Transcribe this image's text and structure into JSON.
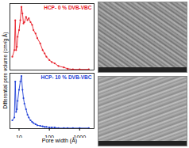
{
  "chart_data": [
    {
      "type": "line",
      "y_label": "Differential pore volume (cm³/g Å)",
      "log": "x",
      "tick_labels": false,
      "marker": "circle",
      "xlim": [
        5,
        3000
      ],
      "xticks": [
        10,
        100,
        1000
      ],
      "ylim": [
        0,
        1
      ],
      "x": [
        6,
        7,
        7.5,
        8,
        8.5,
        9,
        10,
        11,
        12,
        13,
        14,
        15,
        17,
        19,
        21,
        24,
        27,
        30,
        35,
        40,
        50,
        60,
        70,
        80,
        100,
        120,
        150,
        200,
        300,
        400,
        600,
        1000,
        2000
      ],
      "series": [
        {
          "name": "HCP- 0 % DVB-VBC",
          "color": "#e8202a",
          "values": [
            0.2,
            0.3,
            0.75,
            0.3,
            0.35,
            0.5,
            0.6,
            0.75,
            0.95,
            0.85,
            0.7,
            0.72,
            0.8,
            0.75,
            0.78,
            0.72,
            0.68,
            0.6,
            0.55,
            0.48,
            0.4,
            0.3,
            0.25,
            0.2,
            0.15,
            0.12,
            0.1,
            0.06,
            0.04,
            0.02,
            0.01,
            0.01,
            0.01
          ]
        }
      ]
    },
    {
      "type": "line",
      "x_label": "Pore width (Å)",
      "log": "x",
      "tick_labels": "x",
      "marker": "circle",
      "xlim": [
        5,
        3000
      ],
      "xticks": [
        10,
        100,
        1000
      ],
      "ylim": [
        0,
        1
      ],
      "x": [
        6,
        7,
        7.5,
        8,
        8.5,
        9,
        10,
        11,
        12,
        13,
        14,
        15,
        17,
        19,
        21,
        24,
        27,
        30,
        35,
        40,
        50,
        60,
        70,
        80,
        100,
        120,
        150,
        200,
        300,
        400,
        600,
        1000,
        2000
      ],
      "series": [
        {
          "name": "HCP- 10 % DVB-VBC",
          "color": "#1f3fd6",
          "values": [
            0.15,
            0.2,
            0.85,
            0.3,
            0.35,
            0.5,
            0.7,
            0.85,
            0.95,
            0.7,
            0.55,
            0.45,
            0.35,
            0.25,
            0.2,
            0.15,
            0.12,
            0.1,
            0.08,
            0.06,
            0.05,
            0.04,
            0.03,
            0.03,
            0.02,
            0.02,
            0.02,
            0.01,
            0.01,
            0.01,
            0.01,
            0.01,
            0.01
          ]
        }
      ]
    }
  ]
}
